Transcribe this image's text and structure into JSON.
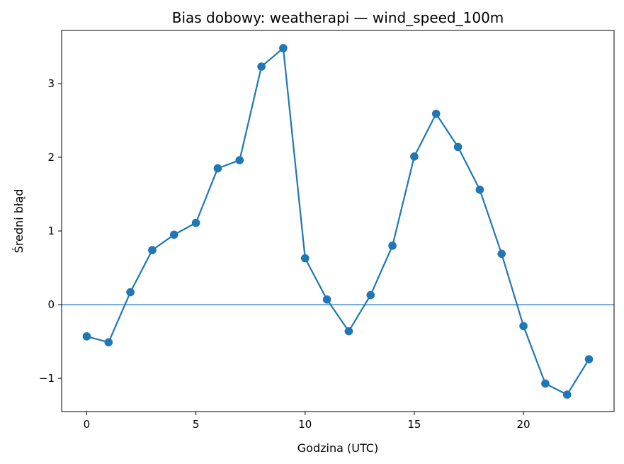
{
  "chart_data": {
    "type": "line",
    "title": "Bias dobowy: weatherapi — wind_speed_100m",
    "xlabel": "Godzina (UTC)",
    "ylabel": "Średni błąd",
    "xlim": [
      -1.15,
      24.15
    ],
    "ylim": [
      -1.45,
      3.72
    ],
    "xticks": [
      0,
      5,
      10,
      15,
      20
    ],
    "xtick_labels": [
      "0",
      "5",
      "10",
      "15",
      "20"
    ],
    "yticks": [
      -1,
      0,
      1,
      2,
      3
    ],
    "ytick_labels": [
      "−1",
      "0",
      "1",
      "2",
      "3"
    ],
    "grid": false,
    "legend": "none",
    "reference_line": {
      "y": 0
    },
    "series": [
      {
        "color": "#1f77b4",
        "marker": "circle",
        "x": [
          0,
          1,
          2,
          3,
          4,
          5,
          6,
          7,
          8,
          9,
          10,
          11,
          12,
          13,
          14,
          15,
          16,
          17,
          18,
          19,
          20,
          21,
          22,
          23
        ],
        "y": [
          -0.43,
          -0.51,
          0.17,
          0.74,
          0.95,
          1.11,
          1.85,
          1.96,
          3.23,
          3.48,
          0.63,
          0.07,
          -0.36,
          0.13,
          0.8,
          2.01,
          2.59,
          2.14,
          1.56,
          0.69,
          -0.29,
          -1.07,
          -1.22,
          -0.74
        ]
      }
    ]
  }
}
